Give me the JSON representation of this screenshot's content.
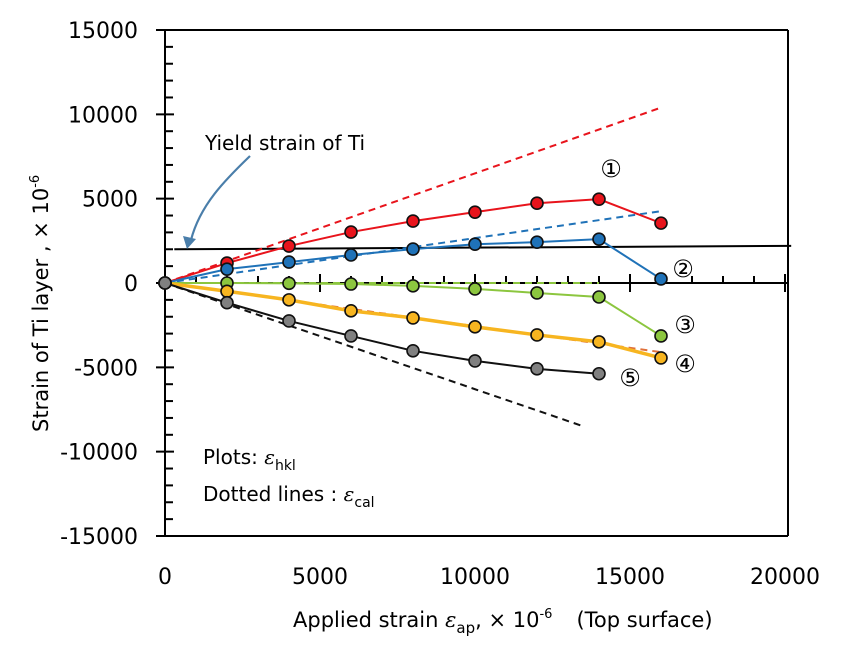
{
  "chart_data": {
    "type": "line",
    "title": "",
    "xlabel": {
      "prefix": "Applied strain ",
      "symbol": "ε",
      "subscript": "ap",
      "suffix": ",  × 10",
      "exponent": "-6",
      "note": "(Top surface)"
    },
    "ylabel": {
      "text": "Strain of Ti layer ,  × 10",
      "exponent": "-6"
    },
    "xlim": [
      0,
      20000
    ],
    "ylim": [
      -15000,
      15000
    ],
    "x_ticks": [
      0,
      5000,
      10000,
      15000,
      20000
    ],
    "x_tick_labels": [
      "0",
      "5000",
      "10000",
      "15000",
      "20000"
    ],
    "y_ticks": [
      15000,
      10000,
      5000,
      0,
      -5000,
      -10000,
      -15000
    ],
    "y_tick_labels": [
      "15000",
      "10000",
      "5000",
      "0",
      "-5000",
      "-10000",
      "-15000"
    ],
    "grid": false,
    "series": [
      {
        "name": "①",
        "color": "#e8141c",
        "x": [
          0,
          2000,
          4000,
          6000,
          8000,
          10000,
          12000,
          14000,
          16000
        ],
        "values": [
          0,
          1180,
          2190,
          3020,
          3670,
          4200,
          4730,
          4970,
          3550
        ],
        "calc_line": {
          "x": [
            0,
            16000
          ],
          "values": [
            0,
            10400
          ]
        }
      },
      {
        "name": "②",
        "color": "#1f72b8",
        "x": [
          0,
          2000,
          4000,
          6000,
          8000,
          10000,
          12000,
          14000,
          16000
        ],
        "values": [
          0,
          820,
          1240,
          1660,
          2010,
          2300,
          2420,
          2600,
          240
        ],
        "calc_line": {
          "x": [
            0,
            16000
          ],
          "values": [
            0,
            4260
          ]
        }
      },
      {
        "name": "③",
        "color": "#8cc63f",
        "x": [
          0,
          2000,
          4000,
          6000,
          8000,
          10000,
          12000,
          14000,
          16000
        ],
        "values": [
          0,
          0,
          -20,
          -60,
          -170,
          -350,
          -590,
          -830,
          -3140
        ],
        "calc_line": {
          "x": [
            0,
            14000
          ],
          "values": [
            0,
            0
          ]
        }
      },
      {
        "name": "④",
        "color": "#f7b520",
        "calc_color": "#e0703a",
        "x": [
          0,
          2000,
          4000,
          6000,
          8000,
          10000,
          12000,
          14000,
          16000
        ],
        "values": [
          0,
          -490,
          -1000,
          -1650,
          -2070,
          -2600,
          -3080,
          -3490,
          -4440
        ],
        "calc_line": {
          "x": [
            0,
            16000
          ],
          "values": [
            0,
            -4100
          ]
        }
      },
      {
        "name": "⑤",
        "color": "#808080",
        "line_color": "#111111",
        "x": [
          0,
          2000,
          4000,
          6000,
          8000,
          10000,
          12000,
          14000
        ],
        "values": [
          0,
          -1170,
          -2250,
          -3140,
          -4020,
          -4620,
          -5090,
          -5380
        ],
        "calc_line": {
          "x": [
            0,
            13500
          ],
          "values": [
            0,
            -8500
          ]
        }
      }
    ],
    "reference_lines": [
      {
        "name": "yield-strain",
        "x": [
          300,
          20200
        ],
        "values": [
          2000,
          2200
        ],
        "color": "#000000"
      }
    ],
    "annotations": {
      "yield_label": "Yield strain of Ti",
      "arrow_color": "#4a7eaa",
      "plots_legend": {
        "text": "Plots: ",
        "symbol": "ε",
        "subscript": "hkl"
      },
      "dotted_legend": {
        "text": "Dotted lines : ",
        "symbol": "ε",
        "subscript": "cal"
      }
    }
  }
}
